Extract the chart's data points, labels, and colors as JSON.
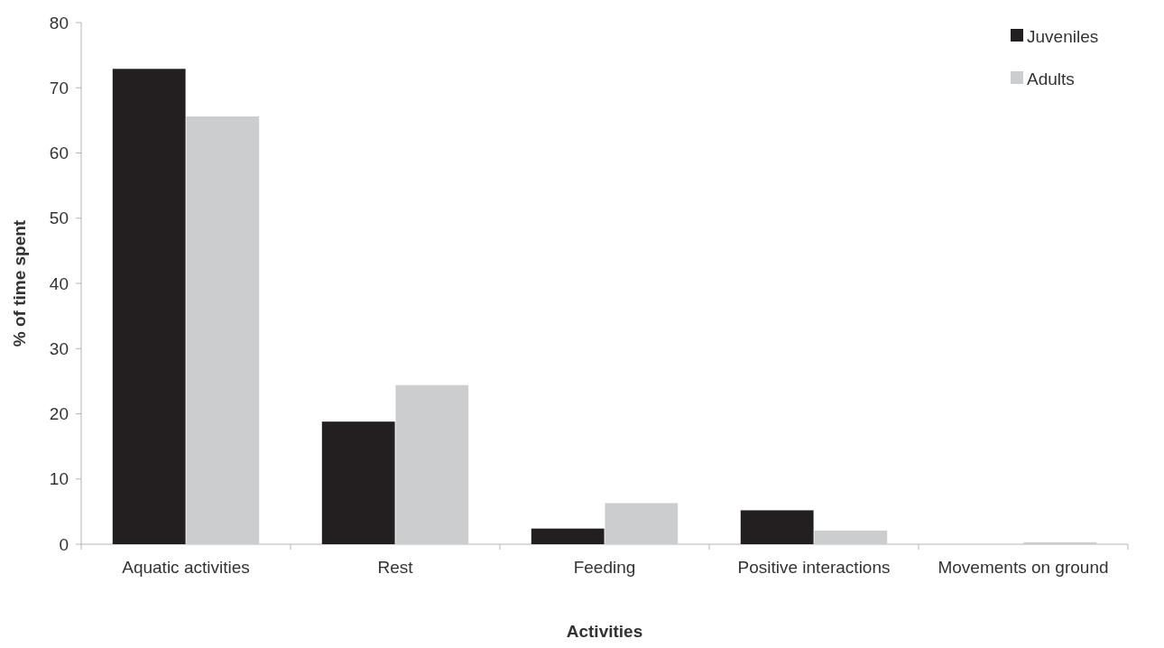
{
  "chart_data": {
    "type": "bar",
    "xlabel": "Activities",
    "ylabel": "% of time spent",
    "categories": [
      "Aquatic activities",
      "Rest",
      "Feeding",
      "Positive interactions",
      "Movements on ground"
    ],
    "series": [
      {
        "name": "Juveniles",
        "color": "#231f20",
        "values": [
          72.9,
          18.8,
          2.4,
          5.2,
          0
        ]
      },
      {
        "name": "Adults",
        "color": "#cccdcf",
        "values": [
          65.6,
          24.4,
          6.3,
          2.1,
          0.3
        ]
      }
    ],
    "ylim": [
      0,
      80
    ],
    "yticks": [
      0,
      10,
      20,
      30,
      40,
      50,
      60,
      70,
      80
    ],
    "grid": false,
    "legend": "top right"
  }
}
